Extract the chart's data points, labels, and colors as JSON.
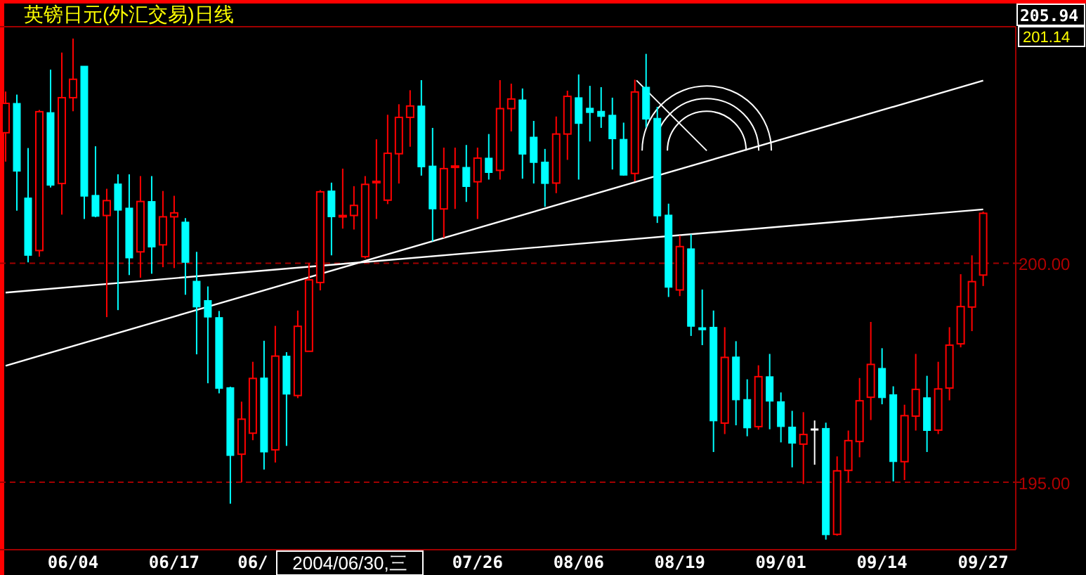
{
  "chart_data": {
    "type": "candlestick",
    "title": "英镑日元(外汇交易)日线",
    "categories": [
      null,
      null,
      null,
      null,
      null,
      null,
      "06/04",
      null,
      null,
      null,
      null,
      null,
      null,
      null,
      null,
      "06/17",
      null,
      null,
      null,
      null,
      null,
      null,
      "06/",
      null,
      null,
      null,
      null,
      null,
      null,
      null,
      null,
      null,
      null,
      null,
      null,
      null,
      null,
      null,
      null,
      null,
      null,
      null,
      "07/26",
      null,
      null,
      null,
      null,
      null,
      null,
      null,
      null,
      "08/06",
      null,
      null,
      null,
      null,
      null,
      null,
      null,
      null,
      "08/19",
      null,
      null,
      null,
      null,
      null,
      null,
      null,
      null,
      "09/01",
      null,
      null,
      null,
      null,
      null,
      null,
      null,
      null,
      "09/14",
      null,
      null,
      null,
      null,
      null,
      null,
      null,
      null,
      "09/27"
    ],
    "ohlc": [
      [
        202.98,
        203.92,
        202.32,
        203.65
      ],
      [
        203.65,
        203.85,
        201.2,
        202.1
      ],
      [
        201.49,
        202.63,
        200.02,
        200.18
      ],
      [
        200.29,
        203.5,
        200.15,
        203.46
      ],
      [
        203.44,
        204.42,
        201.73,
        201.78
      ],
      [
        201.82,
        204.81,
        201.11,
        203.78
      ],
      [
        203.78,
        205.13,
        203.47,
        204.2
      ],
      [
        204.5,
        204.5,
        201.01,
        201.53
      ],
      [
        201.55,
        202.67,
        201.05,
        201.07
      ],
      [
        201.09,
        201.7,
        198.77,
        201.43
      ],
      [
        201.81,
        202.03,
        198.93,
        201.21
      ],
      [
        201.26,
        202.03,
        199.73,
        200.12
      ],
      [
        200.26,
        201.99,
        199.67,
        201.41
      ],
      [
        201.41,
        201.99,
        199.76,
        200.37
      ],
      [
        200.42,
        201.65,
        199.91,
        201.06
      ],
      [
        201.06,
        201.54,
        199.89,
        201.15
      ],
      [
        200.94,
        201.03,
        199.28,
        200.02
      ],
      [
        199.59,
        200.26,
        197.92,
        199.0
      ],
      [
        199.15,
        199.47,
        197.26,
        198.77
      ],
      [
        198.76,
        198.91,
        197.03,
        197.14
      ],
      [
        197.16,
        197.18,
        194.51,
        195.61
      ],
      [
        195.64,
        196.84,
        195.0,
        196.44
      ],
      [
        196.12,
        197.75,
        195.96,
        197.37
      ],
      [
        197.38,
        198.23,
        195.29,
        195.69
      ],
      [
        195.74,
        198.57,
        195.45,
        197.88
      ],
      [
        197.88,
        197.97,
        195.83,
        197.01
      ],
      [
        196.98,
        198.92,
        196.92,
        198.56
      ],
      [
        197.99,
        200.0,
        197.99,
        199.62
      ],
      [
        199.56,
        201.67,
        199.38,
        201.63
      ],
      [
        201.65,
        201.84,
        200.18,
        201.06
      ],
      [
        201.07,
        202.16,
        200.79,
        201.09
      ],
      [
        201.09,
        201.76,
        200.77,
        201.32
      ],
      [
        200.15,
        201.99,
        200.11,
        201.8
      ],
      [
        201.84,
        202.83,
        201.01,
        201.87
      ],
      [
        201.44,
        203.39,
        201.35,
        202.51
      ],
      [
        202.5,
        203.63,
        201.82,
        203.33
      ],
      [
        203.33,
        203.95,
        202.66,
        203.59
      ],
      [
        203.59,
        204.18,
        202.0,
        202.2
      ],
      [
        202.22,
        203.09,
        200.5,
        201.24
      ],
      [
        201.24,
        202.64,
        200.58,
        202.16
      ],
      [
        202.21,
        202.64,
        201.24,
        202.22
      ],
      [
        202.19,
        202.7,
        201.4,
        201.75
      ],
      [
        201.86,
        202.64,
        201.01,
        202.4
      ],
      [
        202.4,
        202.95,
        201.91,
        202.07
      ],
      [
        202.12,
        204.18,
        201.91,
        203.53
      ],
      [
        203.53,
        204.1,
        203.01,
        203.75
      ],
      [
        203.73,
        203.99,
        201.93,
        202.49
      ],
      [
        202.88,
        203.25,
        201.82,
        202.3
      ],
      [
        202.31,
        202.61,
        201.29,
        201.82
      ],
      [
        201.83,
        203.35,
        201.6,
        202.95
      ],
      [
        202.95,
        203.94,
        202.36,
        203.81
      ],
      [
        203.78,
        204.31,
        201.91,
        203.19
      ],
      [
        203.54,
        204.05,
        202.78,
        203.44
      ],
      [
        203.47,
        204.02,
        203.09,
        203.35
      ],
      [
        203.38,
        203.78,
        202.14,
        202.84
      ],
      [
        202.83,
        203.21,
        202.0,
        202.01
      ],
      [
        202.05,
        204.19,
        201.87,
        203.91
      ],
      [
        204.02,
        204.78,
        203.1,
        203.29
      ],
      [
        203.31,
        203.57,
        200.92,
        201.08
      ],
      [
        201.1,
        201.36,
        199.23,
        199.45
      ],
      [
        199.39,
        200.63,
        199.25,
        200.38
      ],
      [
        200.33,
        200.66,
        198.34,
        198.56
      ],
      [
        198.53,
        199.4,
        198.13,
        198.48
      ],
      [
        198.54,
        198.92,
        195.69,
        196.4
      ],
      [
        196.35,
        198.54,
        196.1,
        197.85
      ],
      [
        197.86,
        198.22,
        196.3,
        196.88
      ],
      [
        196.89,
        197.35,
        196.05,
        196.24
      ],
      [
        196.27,
        197.67,
        196.2,
        197.41
      ],
      [
        197.41,
        197.93,
        196.21,
        196.85
      ],
      [
        196.84,
        197.05,
        195.91,
        196.27
      ],
      [
        196.26,
        196.63,
        195.34,
        195.89
      ],
      [
        195.87,
        196.6,
        194.96,
        196.09
      ],
      [
        196.22,
        196.41,
        195.4,
        196.22
      ],
      [
        196.23,
        196.36,
        193.69,
        193.8
      ],
      [
        193.81,
        195.59,
        193.78,
        195.26
      ],
      [
        195.27,
        196.18,
        195.0,
        195.95
      ],
      [
        195.93,
        197.38,
        195.57,
        196.86
      ],
      [
        196.94,
        198.66,
        196.42,
        197.69
      ],
      [
        197.6,
        198.06,
        196.78,
        196.93
      ],
      [
        197.0,
        197.19,
        195.02,
        195.47
      ],
      [
        195.47,
        196.77,
        195.05,
        196.52
      ],
      [
        196.51,
        197.93,
        196.18,
        197.12
      ],
      [
        196.93,
        197.43,
        195.69,
        196.18
      ],
      [
        196.19,
        197.75,
        196.1,
        197.13
      ],
      [
        197.15,
        198.54,
        196.87,
        198.13
      ],
      [
        198.16,
        199.75,
        198.08,
        199.01
      ],
      [
        199.0,
        200.18,
        198.45,
        199.58
      ],
      [
        199.73,
        201.18,
        199.48,
        201.14
      ]
    ],
    "colors": [
      "#ff0000",
      "#00ffff",
      "#00ffff",
      "#ff0000",
      "#00ffff",
      "#ff0000",
      "#ff0000",
      "#00ffff",
      "#00ffff",
      "#ff0000",
      "#00ffff",
      "#00ffff",
      "#ff0000",
      "#00ffff",
      "#ff0000",
      "#ff0000",
      "#00ffff",
      "#00ffff",
      "#00ffff",
      "#00ffff",
      "#00ffff",
      "#ff0000",
      "#ff0000",
      "#00ffff",
      "#ff0000",
      "#00ffff",
      "#ff0000",
      "#ff0000",
      "#ff0000",
      "#00ffff",
      "#ff0000",
      "#ff0000",
      "#ff0000",
      "#ff0000",
      "#ff0000",
      "#ff0000",
      "#ff0000",
      "#00ffff",
      "#00ffff",
      "#ff0000",
      "#ff0000",
      "#00ffff",
      "#ff0000",
      "#00ffff",
      "#ff0000",
      "#ff0000",
      "#00ffff",
      "#00ffff",
      "#00ffff",
      "#ff0000",
      "#ff0000",
      "#00ffff",
      "#00ffff",
      "#00ffff",
      "#00ffff",
      "#00ffff",
      "#ff0000",
      "#00ffff",
      "#00ffff",
      "#00ffff",
      "#ff0000",
      "#00ffff",
      "#00ffff",
      "#00ffff",
      "#ff0000",
      "#00ffff",
      "#00ffff",
      "#ff0000",
      "#00ffff",
      "#00ffff",
      "#00ffff",
      "#ff0000",
      "#ffffff",
      "#00ffff",
      "#ff0000",
      "#ff0000",
      "#ff0000",
      "#ff0000",
      "#00ffff",
      "#00ffff",
      "#ff0000",
      "#ff0000",
      "#00ffff",
      "#ff0000",
      "#ff0000",
      "#ff0000",
      "#ff0000",
      "#ff0000"
    ],
    "series": [
      {
        "type": "line",
        "color": "#ffffff",
        "values": [
          199.33,
          null,
          null,
          null,
          null,
          null,
          null,
          null,
          null,
          null,
          null,
          null,
          null,
          null,
          null,
          null,
          null,
          null,
          null,
          null,
          null,
          null,
          null,
          null,
          null,
          null,
          null,
          null,
          null,
          null,
          null,
          null,
          null,
          null,
          null,
          null,
          null,
          null,
          null,
          null,
          null,
          null,
          null,
          null,
          null,
          null,
          null,
          null,
          null,
          null,
          null,
          null,
          null,
          null,
          null,
          null,
          null,
          null,
          null,
          null,
          null,
          null,
          null,
          null,
          null,
          null,
          null,
          null,
          null,
          null,
          null,
          null,
          null,
          null,
          null,
          null,
          null,
          null,
          null,
          null,
          null,
          null,
          null,
          null,
          null,
          null,
          null,
          201.23
        ]
      },
      {
        "type": "line",
        "color": "#ffffff",
        "values": [
          197.66,
          null,
          null,
          null,
          null,
          null,
          null,
          null,
          null,
          null,
          null,
          null,
          null,
          null,
          null,
          null,
          null,
          null,
          null,
          null,
          null,
          null,
          null,
          null,
          null,
          null,
          null,
          null,
          null,
          null,
          null,
          null,
          null,
          null,
          null,
          null,
          null,
          null,
          null,
          null,
          null,
          null,
          null,
          null,
          null,
          null,
          null,
          null,
          null,
          null,
          null,
          null,
          null,
          null,
          null,
          null,
          null,
          null,
          null,
          null,
          null,
          null,
          null,
          null,
          null,
          null,
          null,
          null,
          null,
          null,
          null,
          null,
          null,
          null,
          null,
          null,
          null,
          null,
          null,
          null,
          null,
          null,
          null,
          null,
          null,
          null,
          null,
          204.17
        ]
      }
    ],
    "ylim": [
      193.46,
      205.4
    ],
    "yticks": [
      {
        "value": 195,
        "label": "195.00"
      },
      {
        "value": 200,
        "label": "200.00"
      }
    ],
    "grid": "y",
    "annotations": [
      "205.94",
      "201.14",
      "2004/06/30,三"
    ]
  }
}
